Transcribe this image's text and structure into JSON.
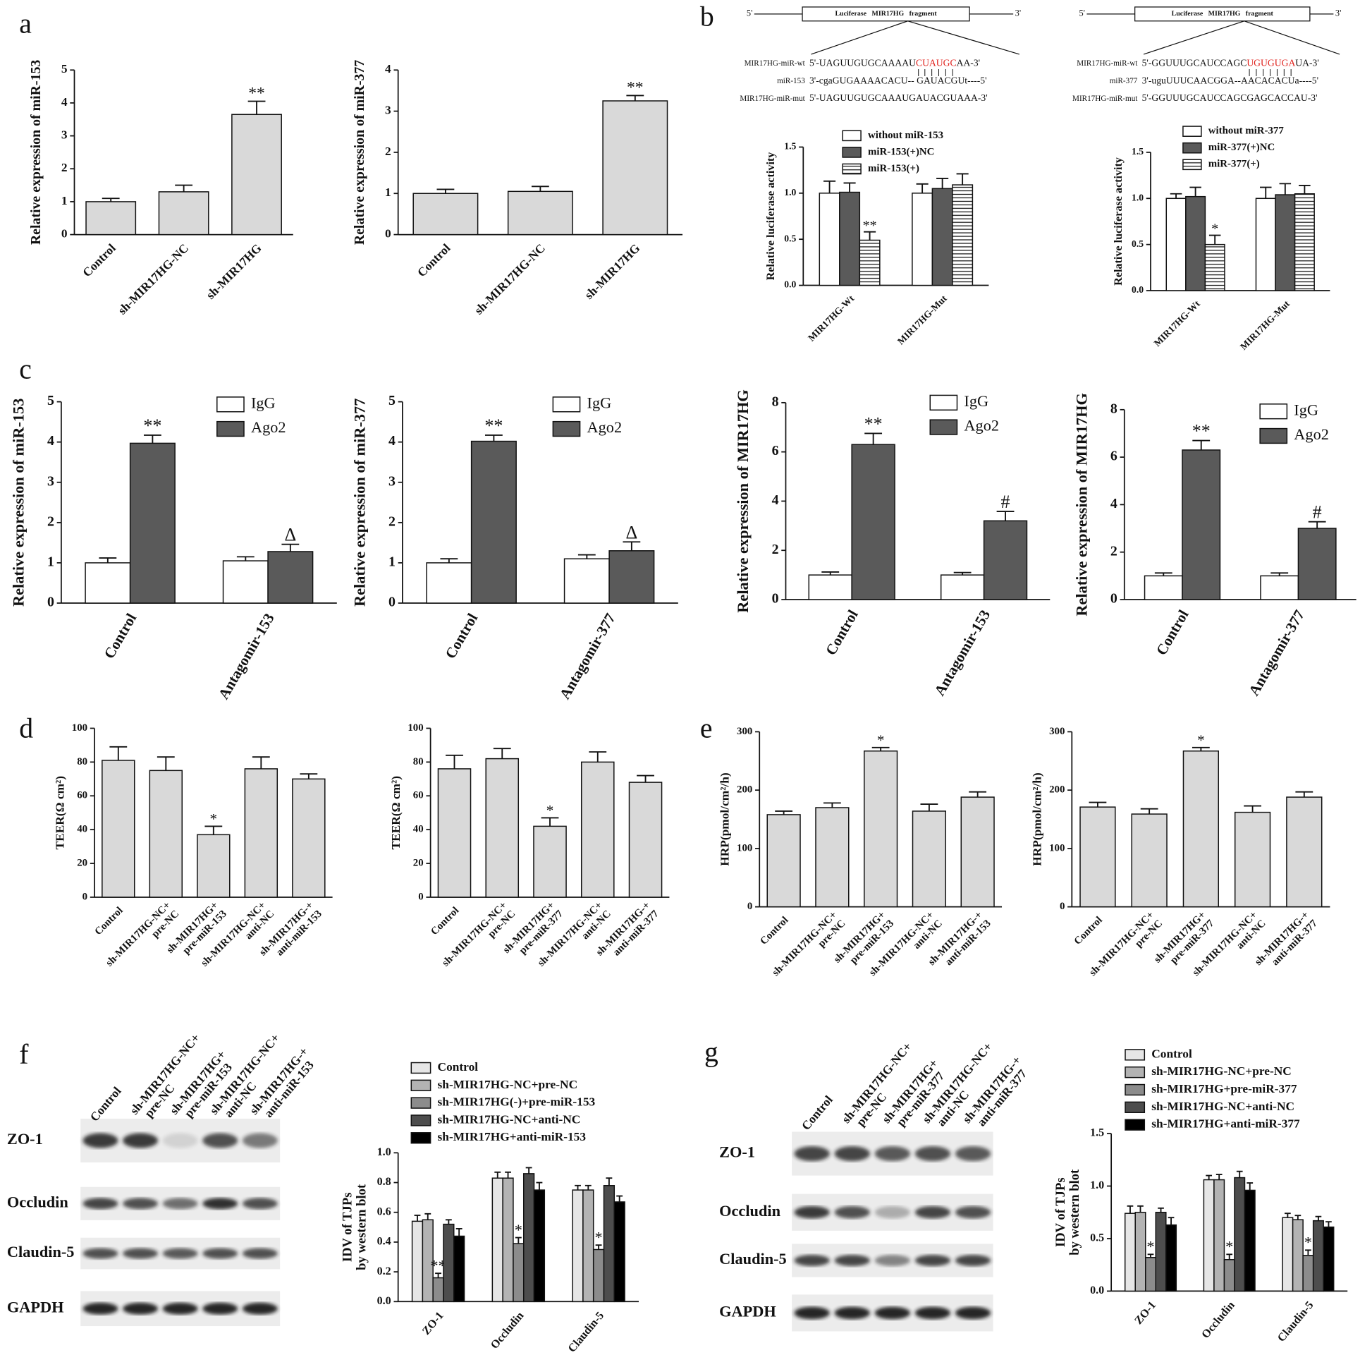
{
  "panel_labels": [
    "a",
    "b",
    "c",
    "d",
    "e",
    "f",
    "g"
  ],
  "luciferase": [
    {
      "five": "5'",
      "three": "3'",
      "box": "Luciferase   MIR17HG   fragment",
      "rows": [
        {
          "label": "MIR17HG-miR-wt",
          "parts": [
            {
              "text": "5'-UAGUUGUGCAAAAU",
              "color": "#111111"
            },
            {
              "text": "CUAUGC",
              "color": "#e0201b"
            },
            {
              "text": "AA-3'",
              "color": "#111111"
            }
          ]
        },
        {
          "label": "miR-153",
          "parts": [
            {
              "text": "3'-cgaGUGAAAACACU-- GAUACGUt----5'",
              "color": "#111111"
            }
          ]
        },
        {
          "label": "MIR17HG-miR-mut",
          "parts": [
            {
              "text": "5'-UAGUUGUGCAAAUGAUACGUAAA-3'",
              "color": "#111111"
            }
          ]
        }
      ]
    },
    {
      "five": "5'",
      "three": "3'",
      "box": "Luciferase   MIR17HG   fragment",
      "rows": [
        {
          "label": "MIR17HG-miR-wt",
          "parts": [
            {
              "text": "5'-GGUUUGCAUCCAGC",
              "color": "#111111"
            },
            {
              "text": "UGUGUGA",
              "color": "#e0201b"
            },
            {
              "text": "UA-3'",
              "color": "#111111"
            }
          ]
        },
        {
          "label": "miR-377",
          "parts": [
            {
              "text": "3'-uguUUUCAACGGA--AACACACUa----5'",
              "color": "#111111"
            }
          ]
        },
        {
          "label": "MIR17HG-miR-mut",
          "parts": [
            {
              "text": "5'-GGUUUGCAUCCAGCGAGCACCAU-3'",
              "color": "#111111"
            }
          ]
        }
      ]
    }
  ],
  "blots": [
    {
      "lanes": [
        [
          "Control"
        ],
        [
          "sh-MIR17HG-NC+",
          "pre-NC"
        ],
        [
          "sh-MIR17HG+",
          "pre-miR-153"
        ],
        [
          "sh-MIR17HG-NC+",
          "anti-NC"
        ],
        [
          "sh-MIR17HG-+",
          "anti-miR-153"
        ]
      ],
      "rows": [
        "ZO-1",
        "Occludin",
        "Claudin-5",
        "GAPDH"
      ]
    },
    {
      "lanes": [
        [
          "Control"
        ],
        [
          "sh-MIR17HG-NC+",
          "pre-NC"
        ],
        [
          "sh-MIR17HG+",
          "pre-miR-377"
        ],
        [
          "sh-MIR17HG-NC+",
          "anti-NC"
        ],
        [
          "sh-MIR17HG-+",
          "anti-miR-377"
        ]
      ],
      "rows": [
        "ZO-1",
        "Occludin",
        "Claudin-5",
        "GAPDH"
      ]
    }
  ],
  "chart_data": [
    {
      "type": "bar",
      "ylabel": "Relative expression of miR-153",
      "categories": [
        "Control",
        "sh-MIR17HG-NC",
        "sh-MIR17HG"
      ],
      "values": [
        1.0,
        1.3,
        3.65
      ],
      "errors": [
        0.1,
        0.2,
        0.4
      ],
      "notes": [
        null,
        null,
        "**"
      ],
      "color": "#d9d9d9",
      "ylim": [
        0,
        5
      ],
      "yticks": [
        0,
        1,
        2,
        3,
        4,
        5
      ]
    },
    {
      "type": "bar",
      "ylabel": "Relative expression of miR-377",
      "categories": [
        "Control",
        "sh-MIR17HG-NC",
        "sh-MIR17HG"
      ],
      "values": [
        1.0,
        1.05,
        3.25
      ],
      "errors": [
        0.1,
        0.12,
        0.13
      ],
      "notes": [
        null,
        null,
        "**"
      ],
      "color": "#d9d9d9",
      "ylim": [
        0,
        4
      ],
      "yticks": [
        0,
        1,
        2,
        3,
        4
      ]
    },
    {
      "type": "bar",
      "ylabel": "Relative luciferase activity",
      "categories": [
        "MIR17HG-Wt",
        "MIR17HG-Mut"
      ],
      "legend": "above",
      "series": [
        {
          "name": "without miR-153",
          "color": "#ffffff",
          "values": [
            1.0,
            1.0
          ],
          "errors": [
            0.13,
            0.1
          ]
        },
        {
          "name": "miR-153(+)NC",
          "color": "#5a5a5a",
          "values": [
            1.01,
            1.05
          ],
          "errors": [
            0.1,
            0.11
          ]
        },
        {
          "name": "miR-153(+)",
          "color": "#ffffff",
          "pattern": "horizontal-lines",
          "values": [
            0.49,
            1.09
          ],
          "errors": [
            0.09,
            0.12
          ],
          "notes": [
            "**",
            null
          ]
        }
      ],
      "ylim": [
        0,
        1.5
      ],
      "yticks": [
        {
          "value": 0,
          "label": "0.0"
        },
        {
          "value": 0.5,
          "label": "0.5"
        },
        {
          "value": 1,
          "label": "1.0"
        },
        {
          "value": 1.5,
          "label": "1.5"
        }
      ]
    },
    {
      "type": "bar",
      "ylabel": "Relative luciferase activity",
      "categories": [
        "MIR17HG-Wt",
        "MIR17HG-Mut"
      ],
      "legend": "above",
      "series": [
        {
          "name": "without miR-377",
          "color": "#ffffff",
          "values": [
            1.0,
            1.0
          ],
          "errors": [
            0.05,
            0.12
          ]
        },
        {
          "name": "miR-377(+)NC",
          "color": "#5a5a5a",
          "values": [
            1.02,
            1.04
          ],
          "errors": [
            0.1,
            0.12
          ]
        },
        {
          "name": "miR-377(+)",
          "color": "#ffffff",
          "pattern": "horizontal-lines",
          "values": [
            0.5,
            1.05
          ],
          "errors": [
            0.1,
            0.09
          ],
          "notes": [
            "*",
            null
          ]
        }
      ],
      "ylim": [
        0,
        1.5
      ],
      "yticks": [
        {
          "value": 0,
          "label": "0.0"
        },
        {
          "value": 0.5,
          "label": "0.5"
        },
        {
          "value": 1,
          "label": "1.0"
        },
        {
          "value": 1.5,
          "label": "1.5"
        }
      ]
    },
    {
      "type": "bar",
      "ylabel": "Relative expression of miR-153",
      "categories": [
        "Control",
        "Antagomir-153"
      ],
      "legend": "upper right",
      "series": [
        {
          "name": "IgG",
          "color": "#ffffff",
          "values": [
            1.0,
            1.05
          ],
          "errors": [
            0.12,
            0.1
          ]
        },
        {
          "name": "Ago2",
          "color": "#5a5a5a",
          "values": [
            3.97,
            1.28
          ],
          "errors": [
            0.2,
            0.18
          ],
          "notes": [
            "**",
            "Δ"
          ]
        }
      ],
      "ylim": [
        0,
        5
      ],
      "yticks": [
        0,
        1,
        2,
        3,
        4,
        5
      ]
    },
    {
      "type": "bar",
      "ylabel": "Relative expression of miR-377",
      "categories": [
        "Control",
        "Antagomir-377"
      ],
      "legend": "upper right",
      "series": [
        {
          "name": "IgG",
          "color": "#ffffff",
          "values": [
            1.0,
            1.1
          ],
          "errors": [
            0.1,
            0.1
          ]
        },
        {
          "name": "Ago2",
          "color": "#5a5a5a",
          "values": [
            4.02,
            1.3
          ],
          "errors": [
            0.15,
            0.22
          ],
          "notes": [
            "**",
            "Δ"
          ]
        }
      ],
      "ylim": [
        0,
        5
      ],
      "yticks": [
        0,
        1,
        2,
        3,
        4,
        5
      ]
    },
    {
      "type": "bar",
      "ylabel": "Relative expression of MIR17HG",
      "categories": [
        "Control",
        "Antagomir-153"
      ],
      "legend": "upper right",
      "series": [
        {
          "name": "IgG",
          "color": "#ffffff",
          "values": [
            1.0,
            1.0
          ],
          "errors": [
            0.12,
            0.1
          ]
        },
        {
          "name": "Ago2",
          "color": "#5a5a5a",
          "values": [
            6.3,
            3.2
          ],
          "errors": [
            0.45,
            0.38
          ],
          "notes": [
            "**",
            "#"
          ]
        }
      ],
      "ylim": [
        0,
        8
      ],
      "yticks": [
        0,
        2,
        4,
        6,
        8
      ]
    },
    {
      "type": "bar",
      "ylabel": "Relative expression of MIR17HG",
      "categories": [
        "Control",
        "Antagomir-377"
      ],
      "legend": "upper right",
      "series": [
        {
          "name": "IgG",
          "color": "#ffffff",
          "values": [
            1.0,
            1.0
          ],
          "errors": [
            0.12,
            0.12
          ]
        },
        {
          "name": "Ago2",
          "color": "#5a5a5a",
          "values": [
            6.3,
            3.0
          ],
          "errors": [
            0.4,
            0.28
          ],
          "notes": [
            "**",
            "#"
          ]
        }
      ],
      "ylim": [
        0,
        8
      ],
      "yticks": [
        0,
        2,
        4,
        6,
        8
      ]
    },
    {
      "type": "bar",
      "ylabel": "TEER(Ω cm²)",
      "categories": [
        [
          "Control"
        ],
        [
          "sh-MIR17HG-NC+",
          "pre-NC"
        ],
        [
          "sh-MIR17HG+",
          "pre-miR-153"
        ],
        [
          "sh-MIR17HG-NC+",
          "anti-NC"
        ],
        [
          "sh-MIR17HG-+",
          "anti-miR-153"
        ]
      ],
      "values": [
        81,
        75,
        37,
        76,
        70
      ],
      "errors": [
        8,
        8,
        5,
        7,
        3
      ],
      "notes": [
        null,
        null,
        "*",
        null,
        null
      ],
      "color": "#d9d9d9",
      "ylim": [
        0,
        100
      ],
      "yticks": [
        0,
        20,
        40,
        60,
        80,
        100
      ]
    },
    {
      "type": "bar",
      "ylabel": "TEER(Ω cm²)",
      "categories": [
        [
          "Control"
        ],
        [
          "sh-MIR17HG-NC+",
          "pre-NC"
        ],
        [
          "sh-MIR17HG+",
          "pre-miR-377"
        ],
        [
          "sh-MIR17HG-NC+",
          "anti-NC"
        ],
        [
          "sh-MIR17HG-+",
          "anti-miR-377"
        ]
      ],
      "values": [
        76,
        82,
        42,
        80,
        68
      ],
      "errors": [
        8,
        6,
        5,
        6,
        4
      ],
      "notes": [
        null,
        null,
        "*",
        null,
        null
      ],
      "color": "#d9d9d9",
      "ylim": [
        0,
        100
      ],
      "yticks": [
        0,
        20,
        40,
        60,
        80,
        100
      ]
    },
    {
      "type": "bar",
      "ylabel": "HRP(pmol/cm²/h)",
      "categories": [
        [
          "Control"
        ],
        [
          "sh-MIR17HG-NC+",
          "pre-NC"
        ],
        [
          "sh-MIR17HG+",
          "pre-miR-153"
        ],
        [
          "sh-MIR17HG-NC+",
          "anti-NC"
        ],
        [
          "sh-MIR17HG-+",
          "anti-miR-153"
        ]
      ],
      "values": [
        158,
        170,
        267,
        164,
        188
      ],
      "errors": [
        6,
        8,
        6,
        12,
        9
      ],
      "notes": [
        null,
        null,
        "*",
        null,
        null
      ],
      "color": "#d9d9d9",
      "ylim": [
        0,
        300
      ],
      "yticks": [
        0,
        100,
        200,
        300
      ]
    },
    {
      "type": "bar",
      "ylabel": "HRP(pmol/cm²/h)",
      "categories": [
        [
          "Control"
        ],
        [
          "sh-MIR17HG-NC+",
          "pre-NC"
        ],
        [
          "sh-MIR17HG+",
          "pre-miR-377"
        ],
        [
          "sh-MIR17HG-NC+",
          "anti-NC"
        ],
        [
          "sh-MIR17HG-+",
          "anti-miR-377"
        ]
      ],
      "values": [
        171,
        159,
        267,
        162,
        188
      ],
      "errors": [
        8,
        9,
        6,
        11,
        9
      ],
      "notes": [
        null,
        null,
        "*",
        null,
        null
      ],
      "color": "#d9d9d9",
      "ylim": [
        0,
        300
      ],
      "yticks": [
        0,
        100,
        200,
        300
      ]
    },
    {
      "type": "bar",
      "ylabel": [
        "IDV of TJPs",
        "by western blot"
      ],
      "categories": [
        "ZO-1",
        "Occludin",
        "Claudin-5"
      ],
      "legend": "above",
      "series": [
        {
          "name": "Control",
          "color": "#e6e6e6",
          "values": [
            0.54,
            0.83,
            0.75
          ],
          "errors": [
            0.04,
            0.04,
            0.03
          ]
        },
        {
          "name": "sh-MIR17HG-NC+pre-NC",
          "color": "#b3b3b3",
          "values": [
            0.55,
            0.83,
            0.75
          ],
          "errors": [
            0.04,
            0.04,
            0.03
          ]
        },
        {
          "name": "sh-MIR17HG(-)+pre-miR-153",
          "color": "#8c8c8c",
          "values": [
            0.16,
            0.39,
            0.35
          ],
          "errors": [
            0.03,
            0.04,
            0.03
          ],
          "notes": [
            "**",
            "*",
            "*"
          ]
        },
        {
          "name": "sh-MIR17HG-NC+anti-NC",
          "color": "#4d4d4d",
          "values": [
            0.52,
            0.86,
            0.78
          ],
          "errors": [
            0.03,
            0.04,
            0.05
          ]
        },
        {
          "name": "sh-MIR17HG+anti-miR-153",
          "color": "#000000",
          "values": [
            0.44,
            0.75,
            0.67
          ],
          "errors": [
            0.05,
            0.05,
            0.04
          ]
        }
      ],
      "ylim": [
        0,
        1
      ],
      "yticks": [
        {
          "value": 0,
          "label": "0.0"
        },
        {
          "value": 0.2,
          "label": "0.2"
        },
        {
          "value": 0.4,
          "label": "0.4"
        },
        {
          "value": 0.6,
          "label": "0.6"
        },
        {
          "value": 0.8,
          "label": "0.8"
        },
        {
          "value": 1,
          "label": "1.0"
        }
      ]
    },
    {
      "type": "bar",
      "ylabel": [
        "IDV of TJPs",
        "by western blot"
      ],
      "categories": [
        "ZO-1",
        "Occludin",
        "Claudin-5"
      ],
      "legend": "above",
      "series": [
        {
          "name": "Control",
          "color": "#e6e6e6",
          "values": [
            0.74,
            1.06,
            0.7
          ],
          "errors": [
            0.07,
            0.04,
            0.04
          ]
        },
        {
          "name": "sh-MIR17HG-NC+pre-NC",
          "color": "#b3b3b3",
          "values": [
            0.75,
            1.06,
            0.68
          ],
          "errors": [
            0.06,
            0.05,
            0.04
          ]
        },
        {
          "name": "sh-MIR17HG+pre-miR-377",
          "color": "#8c8c8c",
          "values": [
            0.32,
            0.3,
            0.34
          ],
          "errors": [
            0.03,
            0.05,
            0.05
          ],
          "notes": [
            "*",
            "*",
            "*"
          ]
        },
        {
          "name": "sh-MIR17HG-NC+anti-NC",
          "color": "#4d4d4d",
          "values": [
            0.75,
            1.08,
            0.67
          ],
          "errors": [
            0.04,
            0.06,
            0.04
          ]
        },
        {
          "name": "sh-MIR17HG+anti-miR-377",
          "color": "#000000",
          "values": [
            0.63,
            0.96,
            0.61
          ],
          "errors": [
            0.07,
            0.07,
            0.05
          ]
        }
      ],
      "ylim": [
        0,
        1.5
      ],
      "yticks": [
        {
          "value": 0,
          "label": "0.0"
        },
        {
          "value": 0.5,
          "label": "0.5"
        },
        {
          "value": 1,
          "label": "1.0"
        },
        {
          "value": 1.5,
          "label": "1.5"
        }
      ]
    }
  ]
}
